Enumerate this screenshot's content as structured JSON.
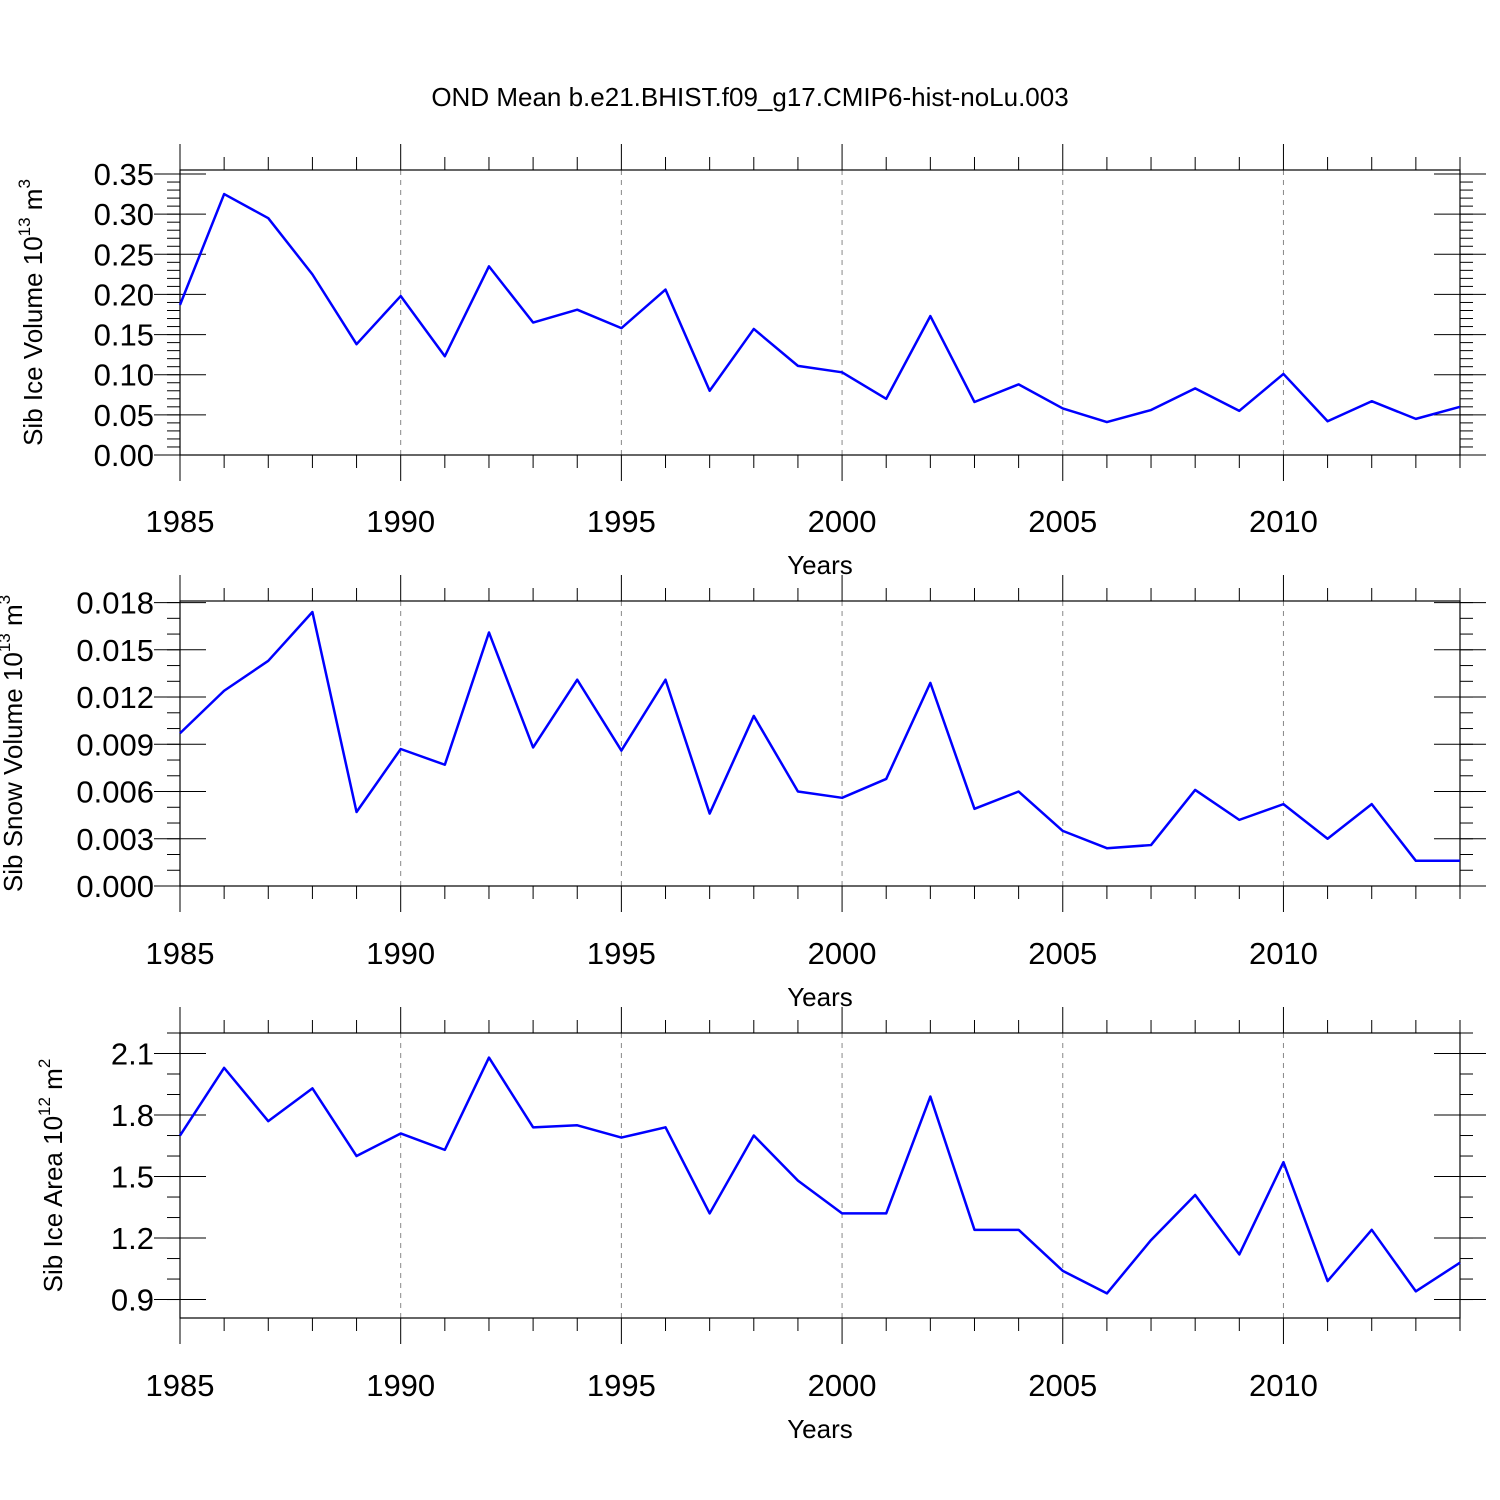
{
  "title": "OND Mean b.e21.BHIST.f09_g17.CMIP6-hist-noLu.003",
  "colors": {
    "line": "#0000ff",
    "grid": "#888888",
    "frame": "#000000"
  },
  "chart_data": [
    {
      "type": "line",
      "ylabel_main": "Sib Ice Volume 10",
      "ylabel_exp": "13",
      "ylabel_unit": " m",
      "ylabel_unit_exp": "3",
      "xlabel": "Years",
      "xlim": [
        1985,
        2014
      ],
      "ylim": [
        0,
        0.355
      ],
      "xticks": [
        "1985",
        "1990",
        "1995",
        "2000",
        "2005",
        "2010"
      ],
      "yticks": [
        "0.00",
        "0.05",
        "0.10",
        "0.15",
        "0.20",
        "0.25",
        "0.30",
        "0.35"
      ],
      "grid": "vertical dashed at major x ticks",
      "x": [
        1985,
        1986,
        1987,
        1988,
        1989,
        1990,
        1991,
        1992,
        1993,
        1994,
        1995,
        1996,
        1997,
        1998,
        1999,
        2000,
        2001,
        2002,
        2003,
        2004,
        2005,
        2006,
        2007,
        2008,
        2009,
        2010,
        2011,
        2012,
        2013,
        2014
      ],
      "values": [
        0.187,
        0.325,
        0.295,
        0.225,
        0.138,
        0.198,
        0.123,
        0.235,
        0.165,
        0.181,
        0.158,
        0.206,
        0.08,
        0.157,
        0.111,
        0.103,
        0.07,
        0.173,
        0.066,
        0.088,
        0.058,
        0.041,
        0.056,
        0.083,
        0.055,
        0.101,
        0.042,
        0.067,
        0.045,
        0.06
      ]
    },
    {
      "type": "line",
      "ylabel_main": "Sib Snow Volume 10",
      "ylabel_exp": "13",
      "ylabel_unit": " m",
      "ylabel_unit_exp": "3",
      "xlabel": "Years",
      "xlim": [
        1985,
        2014
      ],
      "ylim": [
        0,
        0.0181
      ],
      "xticks": [
        "1985",
        "1990",
        "1995",
        "2000",
        "2005",
        "2010"
      ],
      "yticks": [
        "0.000",
        "0.003",
        "0.006",
        "0.009",
        "0.012",
        "0.015",
        "0.018"
      ],
      "grid": "vertical dashed at major x ticks",
      "x": [
        1985,
        1986,
        1987,
        1988,
        1989,
        1990,
        1991,
        1992,
        1993,
        1994,
        1995,
        1996,
        1997,
        1998,
        1999,
        2000,
        2001,
        2002,
        2003,
        2004,
        2005,
        2006,
        2007,
        2008,
        2009,
        2010,
        2011,
        2012,
        2013,
        2014
      ],
      "values": [
        0.0097,
        0.0124,
        0.0143,
        0.0174,
        0.0047,
        0.0087,
        0.0077,
        0.0161,
        0.0088,
        0.0131,
        0.0086,
        0.0131,
        0.0046,
        0.0108,
        0.006,
        0.0056,
        0.0068,
        0.0129,
        0.0049,
        0.006,
        0.0035,
        0.0024,
        0.0026,
        0.0061,
        0.0042,
        0.0052,
        0.003,
        0.0052,
        0.0016,
        0.0016
      ]
    },
    {
      "type": "line",
      "ylabel_main": "Sib Ice Area 10",
      "ylabel_exp": "12",
      "ylabel_unit": " m",
      "ylabel_unit_exp": "2",
      "xlabel": "Years",
      "xlim": [
        1985,
        2014
      ],
      "ylim": [
        0.81,
        2.2
      ],
      "xticks": [
        "1985",
        "1990",
        "1995",
        "2000",
        "2005",
        "2010"
      ],
      "yticks": [
        "0.9",
        "1.2",
        "1.5",
        "1.8",
        "2.1"
      ],
      "grid": "vertical dashed at major x ticks",
      "x": [
        1985,
        1986,
        1987,
        1988,
        1989,
        1990,
        1991,
        1992,
        1993,
        1994,
        1995,
        1996,
        1997,
        1998,
        1999,
        2000,
        2001,
        2002,
        2003,
        2004,
        2005,
        2006,
        2007,
        2008,
        2009,
        2010,
        2011,
        2012,
        2013,
        2014
      ],
      "values": [
        1.7,
        2.03,
        1.77,
        1.93,
        1.6,
        1.71,
        1.63,
        2.08,
        1.74,
        1.75,
        1.69,
        1.74,
        1.32,
        1.7,
        1.48,
        1.32,
        1.32,
        1.89,
        1.24,
        1.24,
        1.04,
        0.93,
        1.19,
        1.41,
        1.12,
        1.57,
        0.99,
        1.24,
        0.94,
        1.08
      ]
    }
  ]
}
